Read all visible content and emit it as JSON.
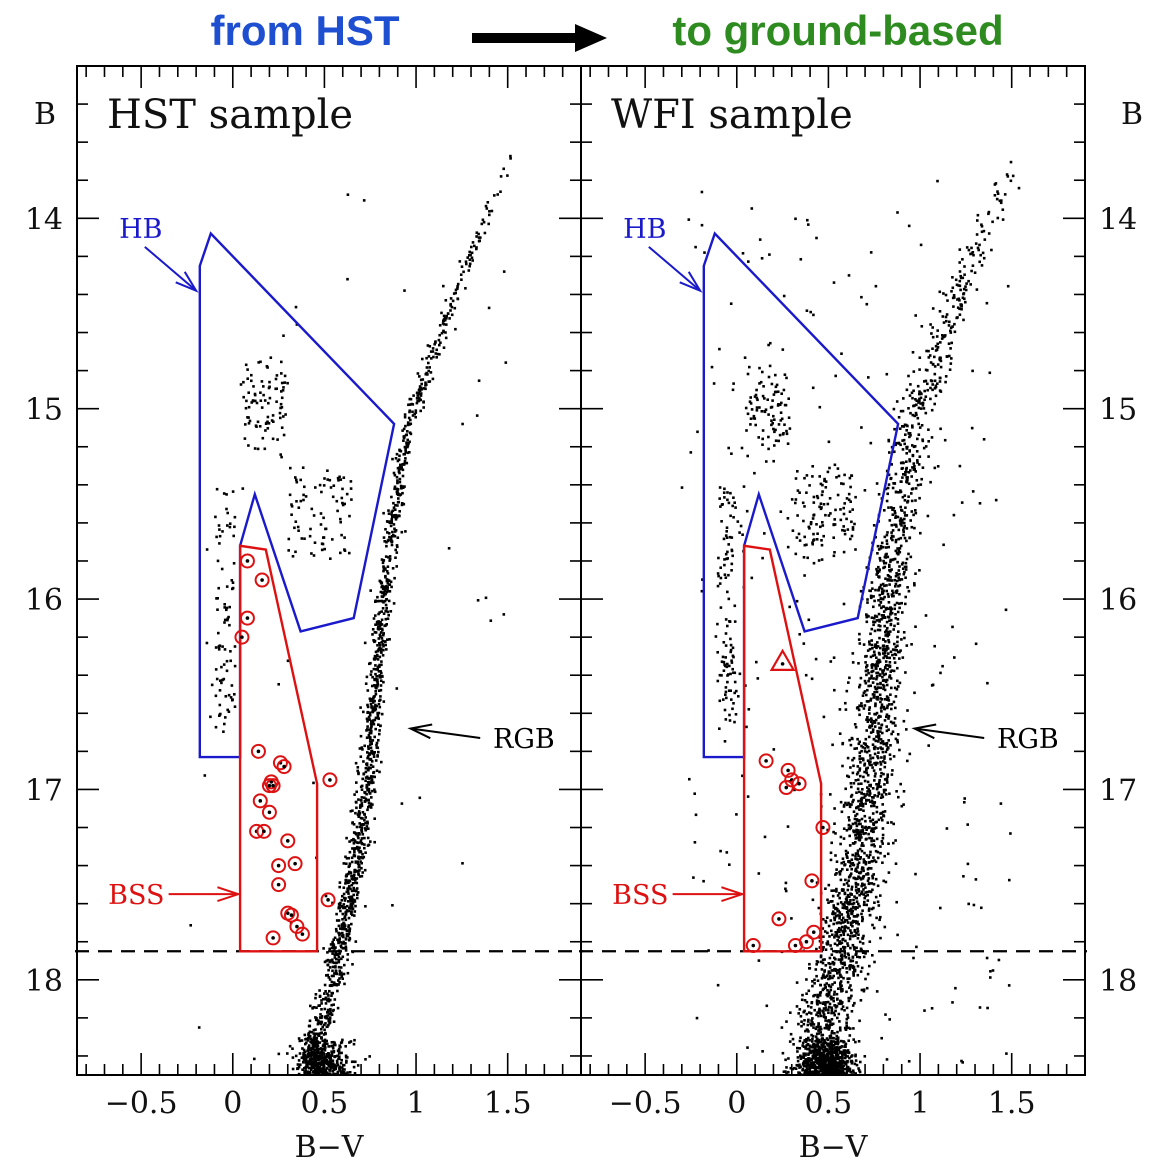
{
  "header": {
    "left_label": "from HST",
    "right_label": "to ground-based",
    "left_color": "#1f4fd1",
    "right_color": "#2e8b1f",
    "arrow_color": "#000000"
  },
  "colors": {
    "hb": "#1a1acc",
    "bss": "#dd1111",
    "points": "#000000",
    "frame": "#000000"
  },
  "chart_data": [
    {
      "type": "scatter",
      "title": "HST sample",
      "xlabel": "B−V",
      "ylabel": "B",
      "xlim": [
        -0.85,
        1.9
      ],
      "ylim": [
        18.5,
        13.2
      ],
      "y_inverted": true,
      "xticks": [
        {
          "v": -0.5,
          "label": "−0.5"
        },
        {
          "v": 0,
          "label": "0"
        },
        {
          "v": 0.5,
          "label": "0.5"
        },
        {
          "v": 1,
          "label": "1"
        },
        {
          "v": 1.5,
          "label": "1.5"
        }
      ],
      "yticks": [
        {
          "v": 14,
          "label": "14"
        },
        {
          "v": 15,
          "label": "15"
        },
        {
          "v": 16,
          "label": "16"
        },
        {
          "v": 17,
          "label": "17"
        },
        {
          "v": 18,
          "label": "18"
        }
      ],
      "ylabel_side": "left",
      "cut_line_B": 17.85,
      "hb_box": [
        [
          -0.18,
          16.83
        ],
        [
          -0.18,
          14.25
        ],
        [
          -0.12,
          14.08
        ],
        [
          0.88,
          15.08
        ],
        [
          0.66,
          16.1
        ],
        [
          0.37,
          16.17
        ],
        [
          0.12,
          15.45
        ],
        [
          0.04,
          15.72
        ],
        [
          0.04,
          16.83
        ]
      ],
      "bss_box": [
        [
          0.04,
          17.85
        ],
        [
          0.04,
          15.72
        ],
        [
          0.18,
          15.74
        ],
        [
          0.46,
          16.97
        ],
        [
          0.46,
          17.85
        ]
      ],
      "labels": {
        "hb": {
          "text": "HB",
          "x": -0.62,
          "y": 14.05
        },
        "bss": {
          "text": "BSS",
          "x": -0.68,
          "y": 17.55
        },
        "rgb": {
          "text": "RGB",
          "x": 1.42,
          "y": 16.73
        }
      },
      "arrows": {
        "hb": {
          "from": [
            -0.48,
            14.15
          ],
          "to": [
            -0.2,
            14.38
          ]
        },
        "bss": {
          "from": [
            -0.35,
            17.55
          ],
          "to": [
            0.03,
            17.55
          ]
        },
        "rgb": {
          "from": [
            1.35,
            16.73
          ],
          "to": [
            0.97,
            16.68
          ]
        }
      },
      "bss_stars": [
        [
          0.08,
          15.8
        ],
        [
          0.16,
          15.9
        ],
        [
          0.08,
          16.1
        ],
        [
          0.05,
          16.2
        ],
        [
          0.14,
          16.8
        ],
        [
          0.21,
          16.96
        ],
        [
          0.2,
          16.98
        ],
        [
          0.26,
          16.86
        ],
        [
          0.28,
          16.88
        ],
        [
          0.22,
          16.98
        ],
        [
          0.15,
          17.06
        ],
        [
          0.2,
          17.12
        ],
        [
          0.13,
          17.22
        ],
        [
          0.17,
          17.22
        ],
        [
          0.3,
          17.27
        ],
        [
          0.25,
          17.4
        ],
        [
          0.34,
          17.39
        ],
        [
          0.25,
          17.5
        ],
        [
          0.3,
          17.65
        ],
        [
          0.32,
          17.66
        ],
        [
          0.35,
          17.72
        ],
        [
          0.38,
          17.76
        ],
        [
          0.22,
          17.78
        ],
        [
          0.52,
          17.58
        ],
        [
          0.53,
          16.95
        ]
      ],
      "triangles": []
    },
    {
      "type": "scatter",
      "title": "WFI sample",
      "xlabel": "B−V",
      "ylabel": "B",
      "xlim": [
        -0.85,
        1.9
      ],
      "ylim": [
        18.5,
        13.2
      ],
      "y_inverted": true,
      "xticks": [
        {
          "v": -0.5,
          "label": "−0.5"
        },
        {
          "v": 0,
          "label": "0"
        },
        {
          "v": 0.5,
          "label": "0.5"
        },
        {
          "v": 1,
          "label": "1"
        },
        {
          "v": 1.5,
          "label": "1.5"
        }
      ],
      "yticks": [
        {
          "v": 14,
          "label": "14"
        },
        {
          "v": 15,
          "label": "15"
        },
        {
          "v": 16,
          "label": "16"
        },
        {
          "v": 17,
          "label": "17"
        },
        {
          "v": 18,
          "label": "18"
        }
      ],
      "ylabel_side": "right",
      "cut_line_B": 17.85,
      "hb_box": [
        [
          -0.18,
          16.83
        ],
        [
          -0.18,
          14.25
        ],
        [
          -0.12,
          14.08
        ],
        [
          0.88,
          15.08
        ],
        [
          0.66,
          16.1
        ],
        [
          0.37,
          16.17
        ],
        [
          0.12,
          15.45
        ],
        [
          0.04,
          15.72
        ],
        [
          0.04,
          16.83
        ]
      ],
      "bss_box": [
        [
          0.04,
          17.85
        ],
        [
          0.04,
          15.72
        ],
        [
          0.18,
          15.74
        ],
        [
          0.46,
          16.97
        ],
        [
          0.46,
          17.85
        ]
      ],
      "labels": {
        "hb": {
          "text": "HB",
          "x": -0.62,
          "y": 14.05
        },
        "bss": {
          "text": "BSS",
          "x": -0.68,
          "y": 17.55
        },
        "rgb": {
          "text": "RGB",
          "x": 1.42,
          "y": 16.73
        }
      },
      "arrows": {
        "hb": {
          "from": [
            -0.48,
            14.15
          ],
          "to": [
            -0.2,
            14.38
          ]
        },
        "bss": {
          "from": [
            -0.35,
            17.55
          ],
          "to": [
            0.03,
            17.55
          ]
        },
        "rgb": {
          "from": [
            1.35,
            16.73
          ],
          "to": [
            0.97,
            16.68
          ]
        }
      },
      "bss_stars": [
        [
          0.16,
          16.85
        ],
        [
          0.28,
          16.9
        ],
        [
          0.3,
          16.95
        ],
        [
          0.34,
          16.97
        ],
        [
          0.27,
          16.99
        ],
        [
          0.47,
          17.2
        ],
        [
          0.41,
          17.48
        ],
        [
          0.23,
          17.68
        ],
        [
          0.42,
          17.75
        ],
        [
          0.38,
          17.8
        ],
        [
          0.09,
          17.82
        ],
        [
          0.32,
          17.82
        ]
      ],
      "triangles": [
        [
          0.25,
          16.33
        ]
      ]
    }
  ]
}
